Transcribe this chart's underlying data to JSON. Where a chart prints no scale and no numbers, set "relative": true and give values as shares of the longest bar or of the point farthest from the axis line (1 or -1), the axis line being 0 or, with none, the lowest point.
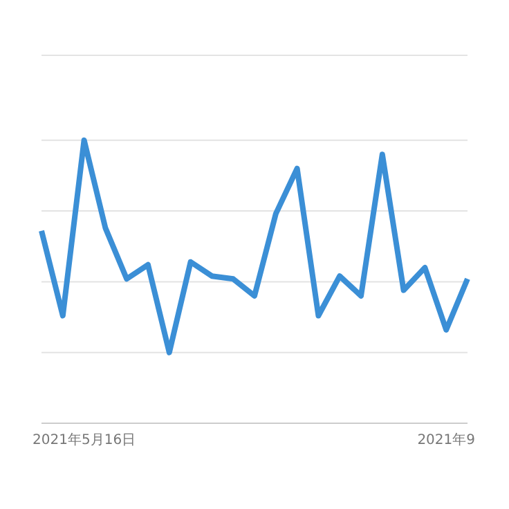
{
  "chart_data": {
    "type": "line",
    "relative": true,
    "categories": [
      null,
      null,
      "2021年5月16日",
      null,
      null,
      null,
      null,
      null,
      null,
      null,
      null,
      null,
      null,
      null,
      null,
      null,
      null,
      null,
      null,
      "2021年9",
      null
    ],
    "series": [
      {
        "color": "#3b8fd6",
        "values": [
          0.68,
          0.38,
          1.0,
          0.69,
          0.51,
          0.56,
          0.25,
          0.57,
          0.52,
          0.51,
          0.45,
          0.74,
          0.9,
          0.38,
          0.52,
          0.45,
          0.95,
          0.47,
          0.55,
          0.33,
          0.51
        ]
      }
    ],
    "grid": "y",
    "marker": "none",
    "line_style": "solid"
  }
}
